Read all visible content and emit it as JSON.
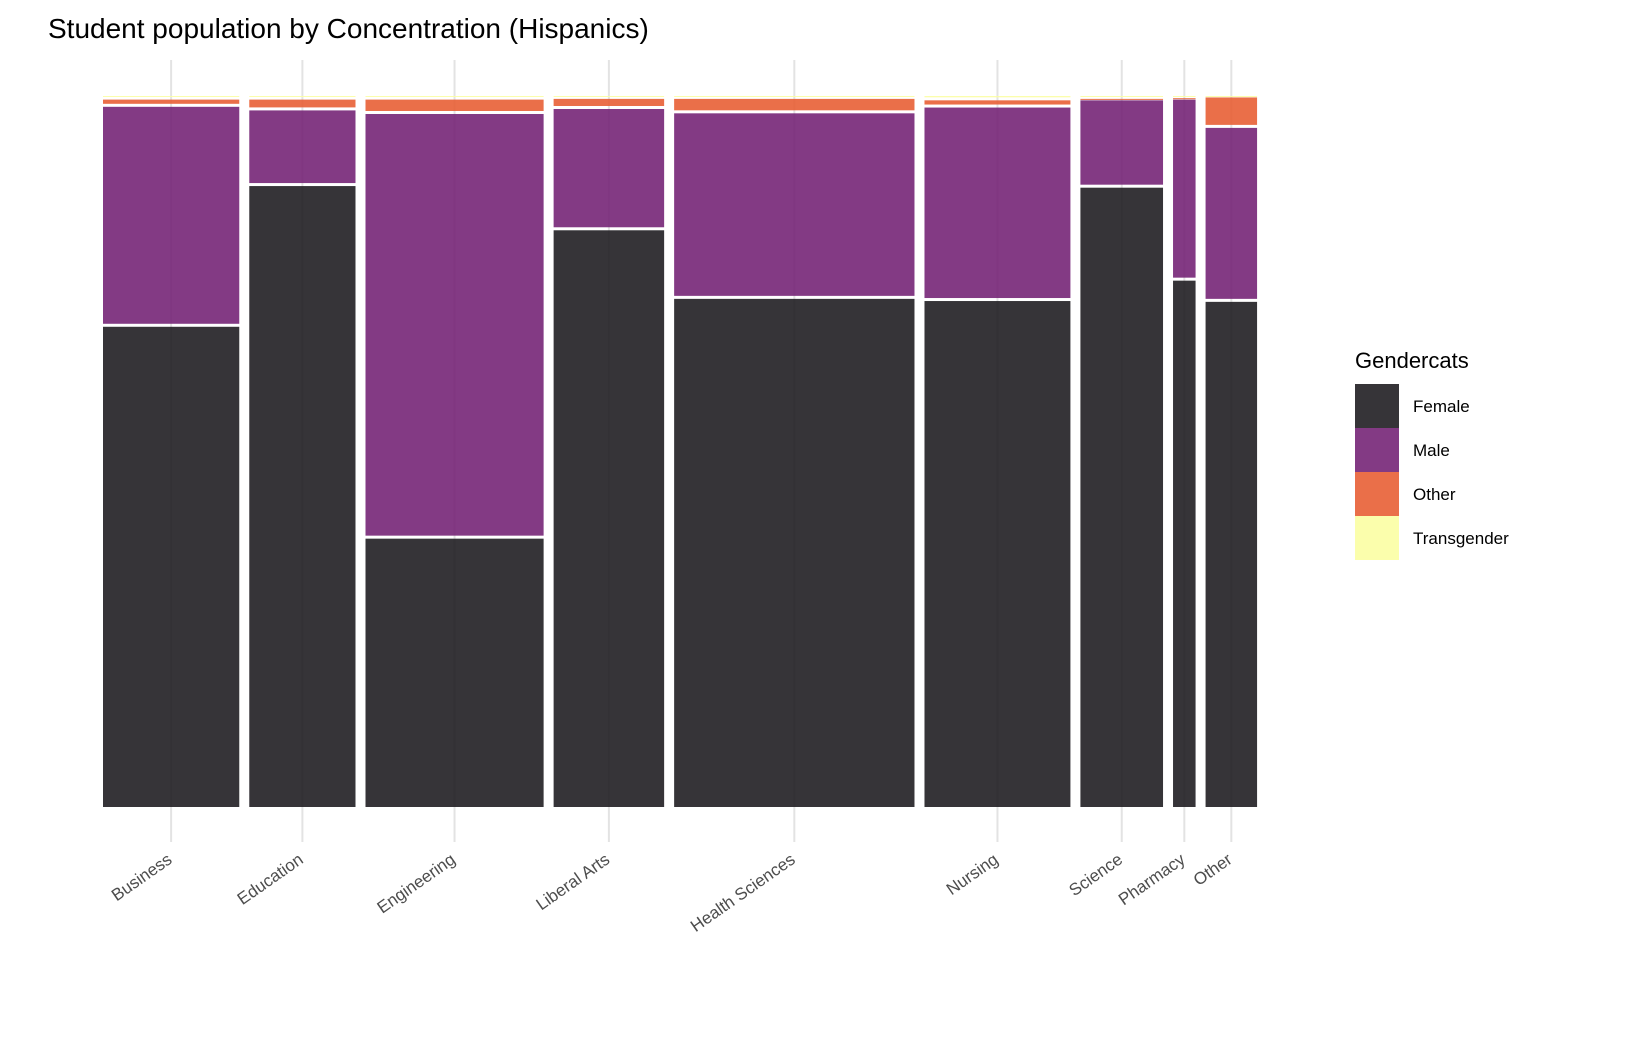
{
  "chart_data": {
    "type": "mosaic",
    "title": "Student population by Concentration (Hispanics)",
    "legend": {
      "title": "Gendercats",
      "placement": "right"
    },
    "grid": true,
    "categories": [
      "Business",
      "Education",
      "Engineering",
      "Liberal Arts",
      "Health Sciences",
      "Nursing",
      "Science",
      "Pharmacy",
      "Other"
    ],
    "column_share": [
      0.127,
      0.099,
      0.166,
      0.103,
      0.224,
      0.136,
      0.077,
      0.021,
      0.048
    ],
    "series": [
      {
        "name": "Female",
        "color": "#1a181d",
        "values": [
          0.67,
          0.866,
          0.377,
          0.803,
          0.708,
          0.705,
          0.862,
          0.731,
          0.701
        ]
      },
      {
        "name": "Male",
        "color": "#721f73",
        "values": [
          0.305,
          0.105,
          0.59,
          0.168,
          0.257,
          0.268,
          0.121,
          0.25,
          0.24
        ]
      },
      {
        "name": "Other",
        "color": "#e75b30",
        "values": [
          0.01,
          0.015,
          0.02,
          0.014,
          0.02,
          0.01,
          0.002,
          0.002,
          0.042
        ]
      },
      {
        "name": "Transgender",
        "color": "#fbfea0",
        "values": [
          0.005,
          0.005,
          0.005,
          0.004,
          0.004,
          0.006,
          0.004,
          0.003,
          0.002
        ]
      }
    ]
  }
}
